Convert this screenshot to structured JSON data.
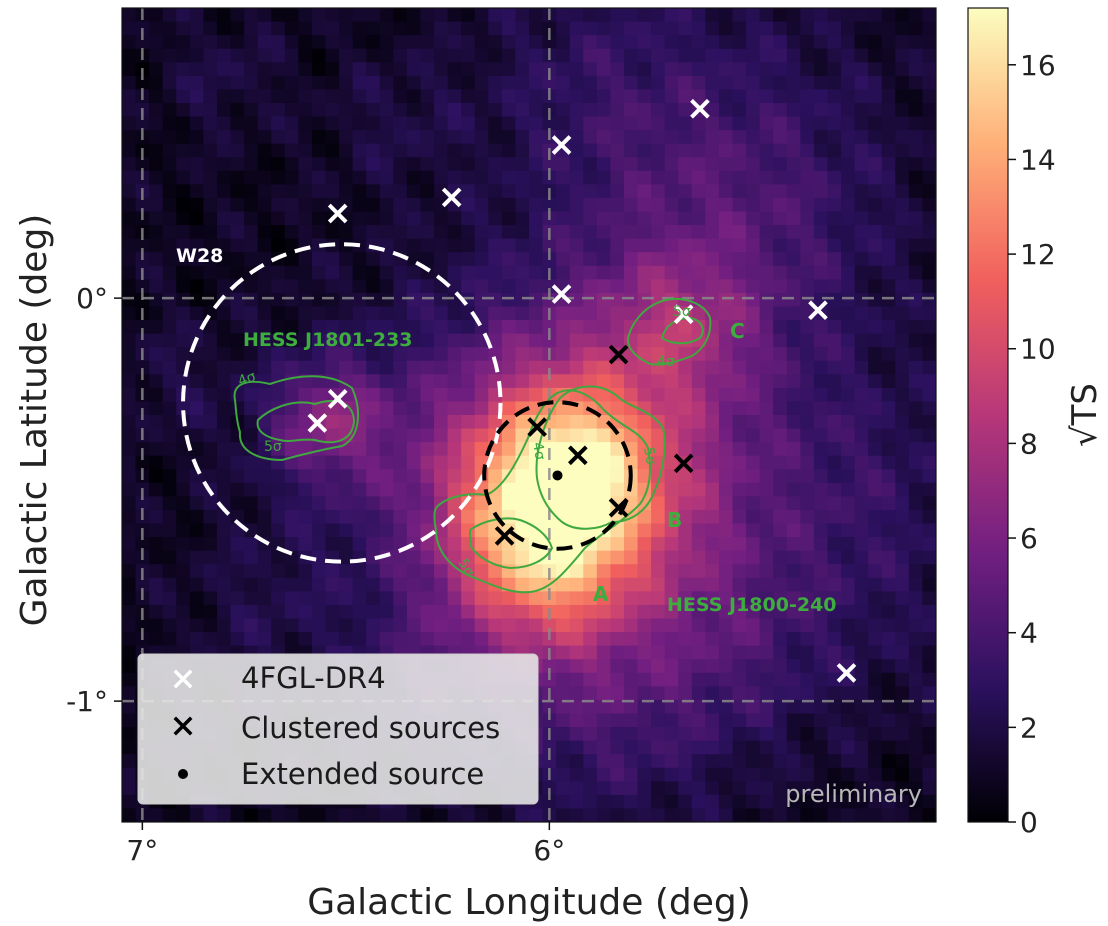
{
  "chart_data": {
    "type": "heatmap",
    "xlabel": "Galactic Longitude (deg)",
    "ylabel": "Galactic Latitude (deg)",
    "xlim": [
      7.05,
      5.05
    ],
    "ylim": [
      -1.3,
      0.72
    ],
    "x_ticks": [
      {
        "value": 7,
        "label": "7°"
      },
      {
        "value": 6,
        "label": "6°"
      }
    ],
    "y_ticks": [
      {
        "value": 0,
        "label": "0°"
      },
      {
        "value": -1,
        "label": "-1°"
      }
    ],
    "grid": true,
    "colorbar": {
      "label": "√TS",
      "range": [
        0,
        17.2
      ],
      "ticks": [
        0,
        2,
        4,
        6,
        8,
        10,
        12,
        14,
        16
      ],
      "colormap": "magma",
      "stops": [
        "#000004",
        "#2c115f",
        "#721f81",
        "#b73779",
        "#f1605d",
        "#feb078",
        "#fcfdbf"
      ]
    },
    "fermi_sources": [
      {
        "l": 5.63,
        "b": 0.47
      },
      {
        "l": 5.97,
        "b": 0.38
      },
      {
        "l": 6.24,
        "b": 0.25
      },
      {
        "l": 6.52,
        "b": 0.21
      },
      {
        "l": 5.97,
        "b": 0.01
      },
      {
        "l": 5.34,
        "b": -0.03
      },
      {
        "l": 5.67,
        "b": -0.04
      },
      {
        "l": 6.52,
        "b": -0.25
      },
      {
        "l": 6.57,
        "b": -0.31
      },
      {
        "l": 5.27,
        "b": -0.93
      }
    ],
    "clustered_sources": [
      {
        "l": 5.83,
        "b": -0.14
      },
      {
        "l": 6.03,
        "b": -0.32
      },
      {
        "l": 5.93,
        "b": -0.39
      },
      {
        "l": 5.67,
        "b": -0.41
      },
      {
        "l": 5.83,
        "b": -0.52
      },
      {
        "l": 6.11,
        "b": -0.59
      }
    ],
    "extended_source": {
      "l": 5.98,
      "b": -0.44,
      "radius_deg": 0.18
    },
    "w28_circle": {
      "l": 6.51,
      "b": -0.26,
      "radius_deg": 0.39
    },
    "annotations": {
      "w28": "W28",
      "hess1": "HESS J1801-233",
      "hess2": "HESS J1800-240",
      "a": "A",
      "b": "B",
      "c": "C",
      "watermark": "preliminary",
      "s4": "4σ",
      "s5": "5σ"
    },
    "legend": {
      "position": "lower-left",
      "entries": [
        {
          "label": "4FGL-DR4",
          "marker": "x",
          "color": "#ffffff"
        },
        {
          "label": "Clustered sources",
          "marker": "x",
          "color": "#000000"
        },
        {
          "label": "Extended source",
          "marker": "dot",
          "color": "#000000"
        }
      ]
    },
    "blobs": [
      {
        "l": 5.97,
        "b": -0.43,
        "s": 0.15,
        "a": 8.5
      },
      {
        "l": 5.94,
        "b": -0.4,
        "s": 0.28,
        "a": 5.0
      },
      {
        "l": 6.07,
        "b": -0.6,
        "s": 0.14,
        "a": 4.0
      },
      {
        "l": 5.86,
        "b": -0.56,
        "s": 0.2,
        "a": 2.5
      },
      {
        "l": 5.98,
        "b": -0.7,
        "s": 0.12,
        "a": 2.5
      },
      {
        "l": 5.95,
        "b": -0.55,
        "s": 0.35,
        "a": 2.2
      },
      {
        "l": 6.55,
        "b": -0.3,
        "s": 0.09,
        "a": 3.5
      },
      {
        "l": 6.52,
        "b": -0.33,
        "s": 0.16,
        "a": 1.8
      },
      {
        "l": 5.68,
        "b": -0.07,
        "s": 0.12,
        "a": 3.0
      },
      {
        "l": 5.65,
        "b": -0.06,
        "s": 0.25,
        "a": 1.2
      },
      {
        "l": 5.6,
        "b": 0.35,
        "s": 0.3,
        "a": 1.6
      },
      {
        "l": 5.5,
        "b": 0.2,
        "s": 0.25,
        "a": 1.4
      },
      {
        "l": 5.9,
        "b": 0.55,
        "s": 0.2,
        "a": 1.3
      },
      {
        "l": 6.8,
        "b": 0.55,
        "s": 0.1,
        "a": 1.1
      },
      {
        "l": 6.38,
        "b": 0.44,
        "s": 0.12,
        "a": 1.0
      },
      {
        "l": 5.3,
        "b": -0.7,
        "s": 0.25,
        "a": 1.4
      },
      {
        "l": 5.55,
        "b": -0.9,
        "s": 0.15,
        "a": 1.2
      },
      {
        "l": 6.7,
        "b": -0.78,
        "s": 0.14,
        "a": 1.0
      },
      {
        "l": 6.33,
        "b": -0.95,
        "s": 0.12,
        "a": 1.2
      },
      {
        "l": 5.8,
        "b": -1.1,
        "s": 0.18,
        "a": 1.3
      },
      {
        "l": 6.93,
        "b": -0.2,
        "s": 0.1,
        "a": 1.0
      },
      {
        "l": 5.2,
        "b": -0.4,
        "s": 0.2,
        "a": 1.0
      },
      {
        "l": 6.05,
        "b": -0.85,
        "s": 0.22,
        "a": 1.8
      }
    ]
  }
}
